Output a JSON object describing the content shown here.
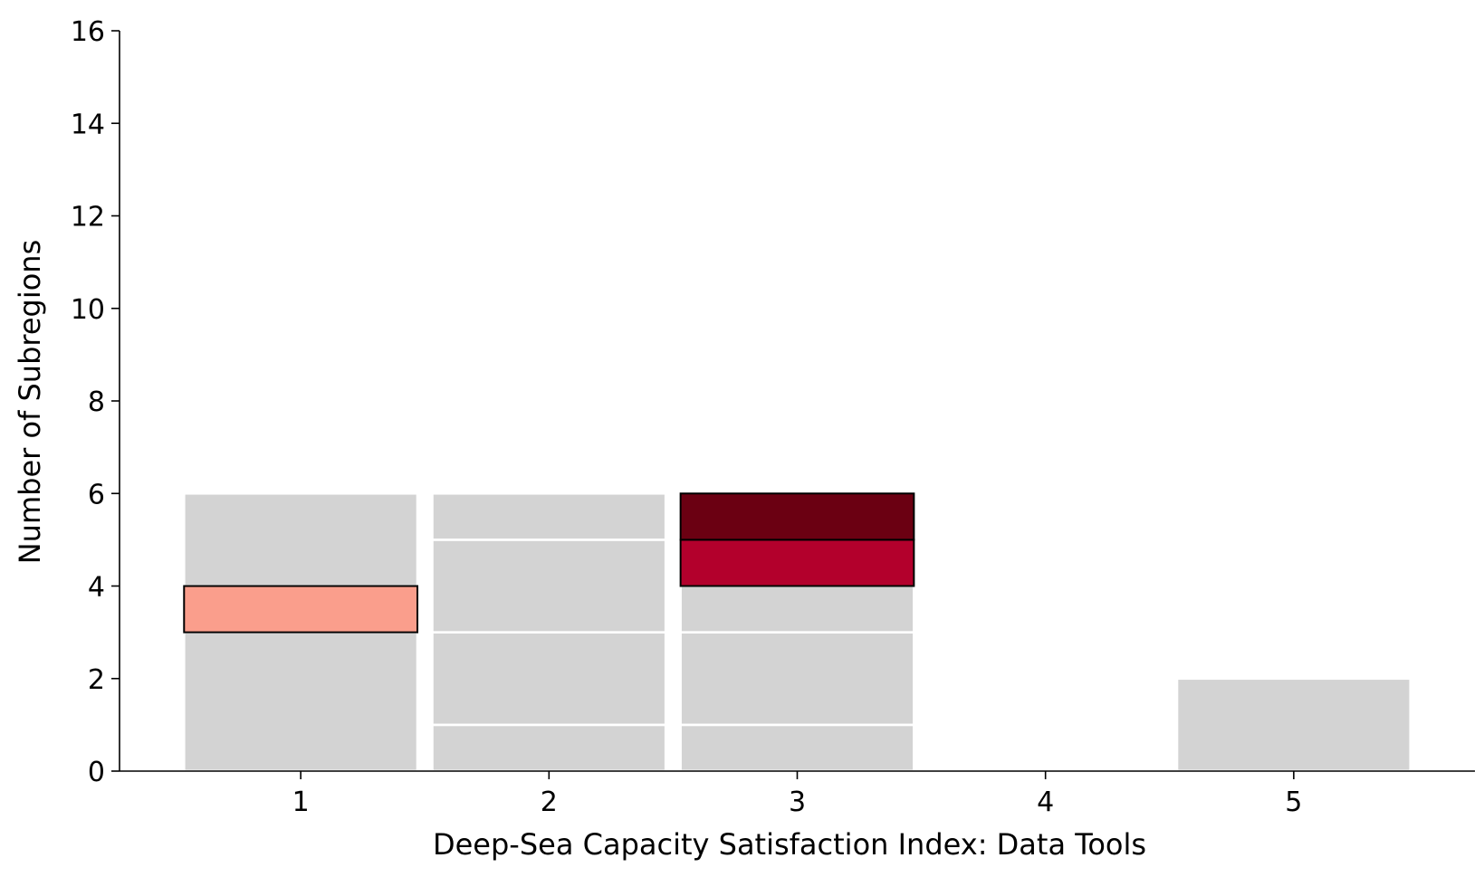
{
  "chart_data": {
    "type": "bar",
    "subtype": "stacked-unit-histogram",
    "title": "",
    "xlabel": "Deep-Sea Capacity Satisfaction Index: Data Tools",
    "ylabel": "Number of Subregions",
    "categories": [
      1,
      2,
      3,
      4,
      5
    ],
    "totals": [
      6,
      6,
      6,
      0,
      2
    ],
    "xlim": [
      0.27,
      5.73
    ],
    "ylim": [
      0,
      16
    ],
    "yticks": [
      0,
      2,
      4,
      6,
      8,
      10,
      12,
      14,
      16
    ],
    "grid": false,
    "legend": "none",
    "segments": [
      {
        "x": 1,
        "start": 0,
        "end": 3,
        "highlight": false
      },
      {
        "x": 1,
        "start": 3,
        "end": 4,
        "highlight": true,
        "color": "#fa9e8c"
      },
      {
        "x": 1,
        "start": 4,
        "end": 6,
        "highlight": false
      },
      {
        "x": 2,
        "start": 0,
        "end": 1,
        "highlight": false
      },
      {
        "x": 2,
        "start": 1,
        "end": 3,
        "highlight": false
      },
      {
        "x": 2,
        "start": 3,
        "end": 5,
        "highlight": false
      },
      {
        "x": 2,
        "start": 5,
        "end": 6,
        "highlight": false
      },
      {
        "x": 3,
        "start": 0,
        "end": 1,
        "highlight": false
      },
      {
        "x": 3,
        "start": 1,
        "end": 3,
        "highlight": false
      },
      {
        "x": 3,
        "start": 3,
        "end": 4,
        "highlight": false
      },
      {
        "x": 3,
        "start": 4,
        "end": 5,
        "highlight": true,
        "color": "#b3002c"
      },
      {
        "x": 3,
        "start": 5,
        "end": 6,
        "highlight": true,
        "color": "#6b0012"
      },
      {
        "x": 5,
        "start": 0,
        "end": 2,
        "highlight": false
      }
    ]
  },
  "colors": {
    "base_bar": "#d3d3d3",
    "separator": "#ffffff",
    "highlight_edge": "#000000",
    "axis": "#000000"
  }
}
